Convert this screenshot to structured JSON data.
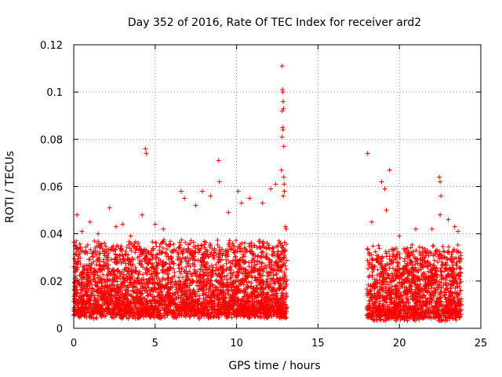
{
  "chart_data": {
    "type": "scatter",
    "title": "Day 352 of 2016, Rate Of TEC Index for receiver ard2",
    "xlabel": "GPS time / hours",
    "ylabel": "ROTI / TECUs",
    "xlim": [
      0,
      25
    ],
    "ylim": [
      0,
      0.12
    ],
    "x_ticks": [
      0,
      5,
      10,
      15,
      20,
      25
    ],
    "x_tick_labels": [
      "0",
      "5",
      "10",
      "15",
      "20",
      "25"
    ],
    "y_ticks": [
      0,
      0.02,
      0.04,
      0.06,
      0.08,
      0.1,
      0.12
    ],
    "y_tick_labels": [
      "0",
      "0.02",
      "0.04",
      "0.06",
      "0.08",
      "0.1",
      "0.12"
    ],
    "grid": true,
    "marker": "+",
    "series_color": "#ff0000",
    "series": [
      {
        "name": "ROTI",
        "segments": [
          {
            "start": 0.0,
            "end": 13.1,
            "baseline": 0.016,
            "spread": 0.018
          },
          {
            "start": 18.0,
            "end": 23.8,
            "baseline": 0.015,
            "spread": 0.017
          }
        ],
        "points": [
          [
            0.2,
            0.048
          ],
          [
            0.5,
            0.041
          ],
          [
            1.0,
            0.045
          ],
          [
            1.5,
            0.04
          ],
          [
            2.2,
            0.051
          ],
          [
            2.6,
            0.043
          ],
          [
            3.0,
            0.044
          ],
          [
            3.5,
            0.039
          ],
          [
            4.2,
            0.048
          ],
          [
            4.4,
            0.076
          ],
          [
            4.45,
            0.074
          ],
          [
            5.0,
            0.044
          ],
          [
            5.5,
            0.042
          ],
          [
            6.6,
            0.058
          ],
          [
            6.8,
            0.055
          ],
          [
            7.5,
            0.052
          ],
          [
            7.9,
            0.058
          ],
          [
            8.4,
            0.056
          ],
          [
            8.9,
            0.071
          ],
          [
            8.95,
            0.062
          ],
          [
            9.5,
            0.049
          ],
          [
            10.1,
            0.058
          ],
          [
            10.3,
            0.053
          ],
          [
            10.8,
            0.055
          ],
          [
            11.6,
            0.053
          ],
          [
            12.1,
            0.059
          ],
          [
            12.4,
            0.061
          ],
          [
            12.8,
            0.111
          ],
          [
            12.82,
            0.101
          ],
          [
            12.84,
            0.1
          ],
          [
            12.86,
            0.096
          ],
          [
            12.88,
            0.093
          ],
          [
            12.8,
            0.092
          ],
          [
            12.83,
            0.085
          ],
          [
            12.85,
            0.084
          ],
          [
            12.8,
            0.081
          ],
          [
            12.9,
            0.077
          ],
          [
            12.76,
            0.067
          ],
          [
            12.9,
            0.064
          ],
          [
            12.92,
            0.061
          ],
          [
            12.94,
            0.058
          ],
          [
            12.87,
            0.056
          ],
          [
            13.0,
            0.043
          ],
          [
            13.05,
            0.042
          ],
          [
            12.95,
            0.031
          ],
          [
            13.05,
            0.025
          ],
          [
            18.05,
            0.074
          ],
          [
            18.3,
            0.045
          ],
          [
            18.9,
            0.062
          ],
          [
            19.1,
            0.059
          ],
          [
            19.4,
            0.067
          ],
          [
            19.2,
            0.05
          ],
          [
            20.0,
            0.039
          ],
          [
            21.0,
            0.042
          ],
          [
            22.0,
            0.042
          ],
          [
            22.45,
            0.064
          ],
          [
            22.5,
            0.062
          ],
          [
            22.55,
            0.056
          ],
          [
            22.5,
            0.048
          ],
          [
            23.0,
            0.046
          ],
          [
            23.4,
            0.043
          ],
          [
            23.6,
            0.041
          ]
        ]
      }
    ]
  }
}
